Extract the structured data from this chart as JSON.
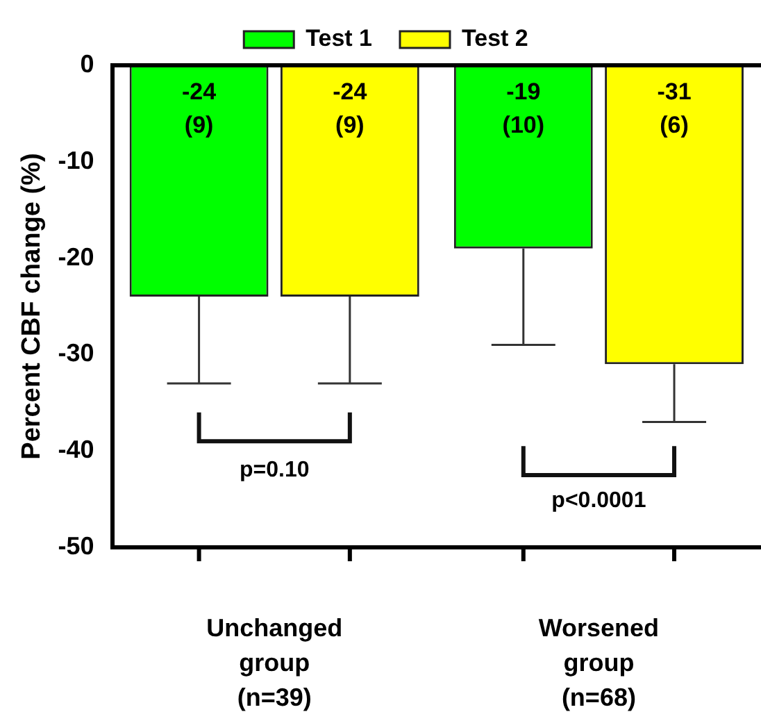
{
  "chart_data": {
    "type": "bar",
    "ylabel": "Percent CBF change (%)",
    "categories": [
      "Unchanged\ngroup\n(n=39)",
      "Worsened\ngroup\n(n=68)"
    ],
    "series": [
      {
        "name": "Test 1",
        "color": "#00ff00",
        "values": [
          -24,
          -19
        ],
        "errors": [
          [
            -33,
            -24
          ],
          [
            -29,
            -19
          ]
        ],
        "value_labels": [
          "-24\n(9)",
          "-19\n(10)"
        ]
      },
      {
        "name": "Test 2",
        "color": "#ffff00",
        "values": [
          -24,
          -31
        ],
        "errors": [
          [
            -33,
            -24
          ],
          [
            -37,
            -31
          ]
        ],
        "value_labels": [
          "-24\n(9)",
          "-31\n(6)"
        ]
      }
    ],
    "ylim": [
      -50,
      0
    ],
    "yticks": [
      -50,
      -40,
      -30,
      -20,
      -10,
      0
    ],
    "grid": false,
    "legend": "top",
    "annotations": [
      "p=0.10",
      "p<0.0001"
    ]
  }
}
